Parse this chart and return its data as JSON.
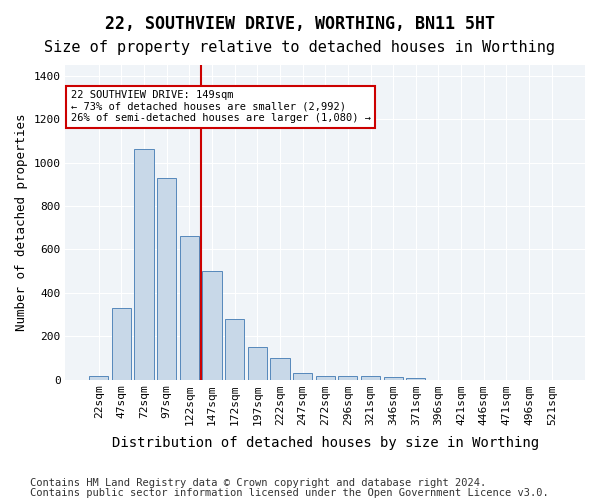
{
  "title1": "22, SOUTHVIEW DRIVE, WORTHING, BN11 5HT",
  "title2": "Size of property relative to detached houses in Worthing",
  "xlabel": "Distribution of detached houses by size in Worthing",
  "ylabel": "Number of detached properties",
  "footnote1": "Contains HM Land Registry data © Crown copyright and database right 2024.",
  "footnote2": "Contains public sector information licensed under the Open Government Licence v3.0.",
  "annotation_line1": "22 SOUTHVIEW DRIVE: 149sqm",
  "annotation_line2": "← 73% of detached houses are smaller (2,992)",
  "annotation_line3": "26% of semi-detached houses are larger (1,080) →",
  "bar_color": "#c8d8e8",
  "bar_edge_color": "#5588bb",
  "vline_color": "#cc0000",
  "vline_x": 5,
  "annotation_box_color": "#cc0000",
  "background_color": "#f0f4f8",
  "plot_bg_color": "#f0f4f8",
  "categories": [
    "22sqm",
    "47sqm",
    "72sqm",
    "97sqm",
    "122sqm",
    "147sqm",
    "172sqm",
    "197sqm",
    "222sqm",
    "247sqm",
    "272sqm",
    "296sqm",
    "321sqm",
    "346sqm",
    "371sqm",
    "396sqm",
    "421sqm",
    "446sqm",
    "471sqm",
    "496sqm",
    "521sqm"
  ],
  "values": [
    18,
    330,
    1065,
    930,
    660,
    500,
    280,
    150,
    100,
    32,
    18,
    18,
    15,
    10,
    5,
    0,
    0,
    0,
    0,
    0,
    0
  ],
  "ylim": [
    0,
    1450
  ],
  "yticks": [
    0,
    200,
    400,
    600,
    800,
    1000,
    1200,
    1400
  ],
  "title1_fontsize": 12,
  "title2_fontsize": 11,
  "xlabel_fontsize": 10,
  "ylabel_fontsize": 9,
  "tick_fontsize": 8,
  "footnote_fontsize": 7.5
}
